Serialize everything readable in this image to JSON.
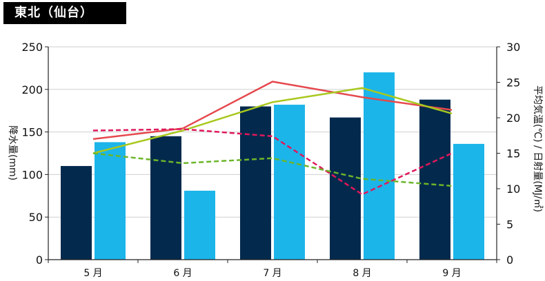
{
  "header": {
    "title": "東北（仙台）"
  },
  "chart_data": {
    "type": "bar",
    "categories": [
      "5 月",
      "6 月",
      "7 月",
      "8 月",
      "9 月"
    ],
    "ylabel_left": "降水量(mm)",
    "ylabel_right": "平均気温(℃) / 日射量(MJ/㎡)",
    "ylim_left": [
      0,
      250
    ],
    "ylim_right": [
      0,
      30
    ],
    "yticks_left": [
      "0",
      "50",
      "100",
      "150",
      "200",
      "250"
    ],
    "yticks_right": [
      "0",
      "5",
      "10",
      "15",
      "20",
      "25",
      "30"
    ],
    "bar_series": [
      {
        "values": [
          110,
          145,
          180,
          167,
          188
        ],
        "color": "#032a4d",
        "axis": "left"
      },
      {
        "values": [
          138,
          81,
          182,
          220,
          136
        ],
        "color": "#1bb5ea",
        "axis": "left"
      }
    ],
    "line_series": [
      {
        "values": [
          17.0,
          18.5,
          25.1,
          22.9,
          21.1
        ],
        "color": "#e5484d",
        "style": "solid",
        "axis": "right"
      },
      {
        "values": [
          15.0,
          18.2,
          22.2,
          24.2,
          20.6
        ],
        "color": "#a8c81e",
        "style": "solid",
        "axis": "right"
      },
      {
        "values": [
          18.2,
          18.4,
          17.4,
          9.2,
          15.0
        ],
        "color": "#e0185a",
        "style": "dashed",
        "axis": "right"
      },
      {
        "values": [
          15.0,
          13.6,
          14.3,
          11.4,
          10.4
        ],
        "color": "#6cb52a",
        "style": "dashed",
        "axis": "right"
      }
    ],
    "grid": "horizontal"
  }
}
